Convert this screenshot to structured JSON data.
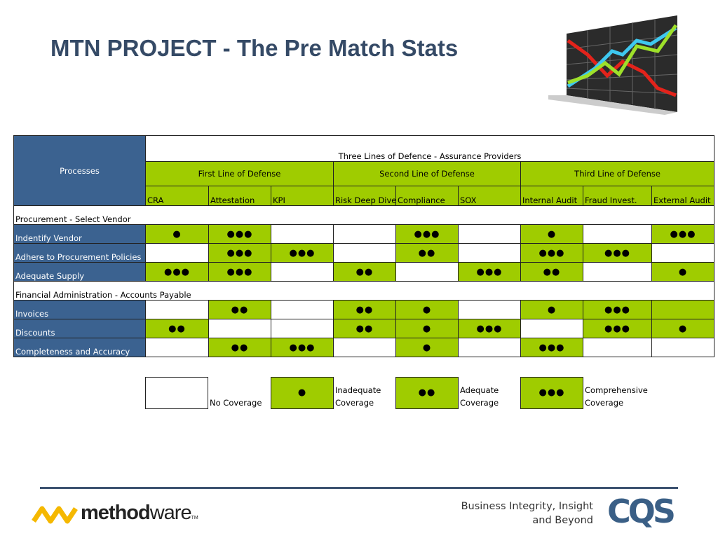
{
  "title": "MTN PROJECT - The Pre Match Stats",
  "table": {
    "processes": "Processes",
    "group": "Three Lines of Defence - Assurance Providers",
    "lines": [
      "First Line of Defense",
      "Second Line of Defense",
      "Third Line of Defense"
    ],
    "columns": [
      "CRA",
      "Attestation",
      "KPI",
      "Risk Deep Dive",
      "Compliance",
      "SOX",
      "Internal Audit",
      "Fraud Invest.",
      "External Audit"
    ],
    "sections": [
      {
        "name": "Procurement - Select Vendor",
        "rows": [
          {
            "label": "Indentify Vendor",
            "cells": [
              "●",
              "●●●",
              null,
              null,
              "●●●",
              null,
              "●",
              null,
              "●●●"
            ],
            "shaded": [
              true,
              true,
              false,
              false,
              true,
              false,
              true,
              false,
              true
            ]
          },
          {
            "label": "Adhere to Procurement Policies",
            "cells": [
              null,
              "●●●",
              "●●●",
              null,
              "●●",
              null,
              "●●●",
              "●●●",
              null
            ],
            "shaded": [
              false,
              true,
              true,
              false,
              true,
              false,
              true,
              true,
              false
            ]
          },
          {
            "label": "Adequate Supply",
            "cells": [
              "●●●",
              "●●●",
              null,
              "●●",
              null,
              "●●●",
              "●●",
              null,
              "●"
            ],
            "shaded": [
              true,
              true,
              false,
              true,
              false,
              true,
              true,
              false,
              true
            ]
          }
        ]
      },
      {
        "name": "Financial Administration - Accounts Payable",
        "rows": [
          {
            "label": "Invoices",
            "cells": [
              null,
              "●●",
              null,
              "●●",
              "●",
              null,
              "●",
              "●●●",
              null
            ],
            "shaded": [
              false,
              true,
              false,
              true,
              true,
              false,
              true,
              true,
              true
            ]
          },
          {
            "label": "Discounts",
            "cells": [
              "●●",
              null,
              null,
              "●●",
              "●",
              "●●●",
              null,
              "●●●",
              "●"
            ],
            "shaded": [
              true,
              false,
              false,
              true,
              true,
              true,
              false,
              true,
              true
            ]
          },
          {
            "label": "Completeness and Accuracy",
            "cells": [
              null,
              "●●",
              "●●●",
              null,
              "●",
              null,
              "●●●",
              null,
              null
            ],
            "shaded": [
              false,
              true,
              true,
              false,
              true,
              false,
              true,
              false,
              false
            ]
          }
        ]
      }
    ]
  },
  "legend": [
    {
      "mark": null,
      "label": "No Coverage"
    },
    {
      "mark": "●",
      "label": "Inadequate Coverage"
    },
    {
      "mark": "●●",
      "label": "Adequate Coverage"
    },
    {
      "mark": "●●●",
      "label": "Comprehensive Coverage"
    }
  ],
  "footer": {
    "logo": [
      "method",
      "ware"
    ],
    "trademark": "TM",
    "tagline": [
      "Business Integrity, Insight",
      "and Beyond"
    ],
    "partner": "CQS"
  }
}
